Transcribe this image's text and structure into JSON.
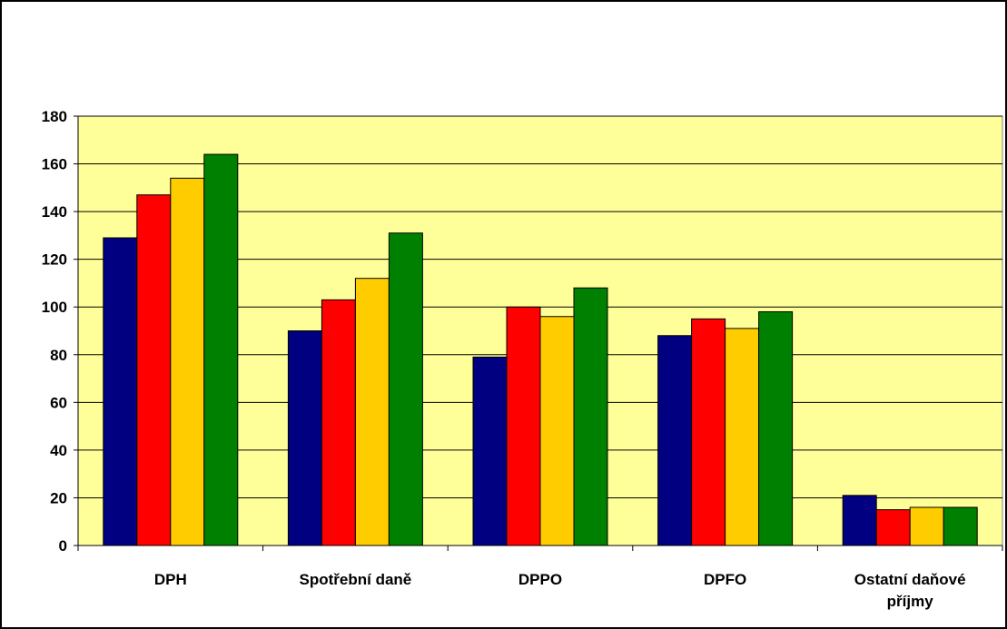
{
  "chart_data": {
    "type": "bar",
    "categories": [
      "DPH",
      "Spotřební daně",
      "DPPO",
      "DPFO",
      "Ostatní daňové příjmy"
    ],
    "category_lines": [
      [
        "DPH"
      ],
      [
        "Spotřební daně"
      ],
      [
        "DPPO"
      ],
      [
        "DPFO"
      ],
      [
        "Ostatní daňové",
        "příjmy"
      ]
    ],
    "series": [
      {
        "color": "#000080",
        "values": [
          129,
          90,
          79,
          88,
          21
        ]
      },
      {
        "color": "#FF0000",
        "values": [
          147,
          103,
          100,
          95,
          15
        ]
      },
      {
        "color": "#FFCC00",
        "values": [
          154,
          112,
          96,
          91,
          16
        ]
      },
      {
        "color": "#008000",
        "values": [
          164,
          131,
          108,
          98,
          16
        ]
      }
    ],
    "ylim": [
      0,
      180
    ],
    "yticks": [
      0,
      20,
      40,
      60,
      80,
      100,
      120,
      140,
      160,
      180
    ],
    "grid": true,
    "plot_background": "#FFFF99",
    "legend": "none"
  }
}
